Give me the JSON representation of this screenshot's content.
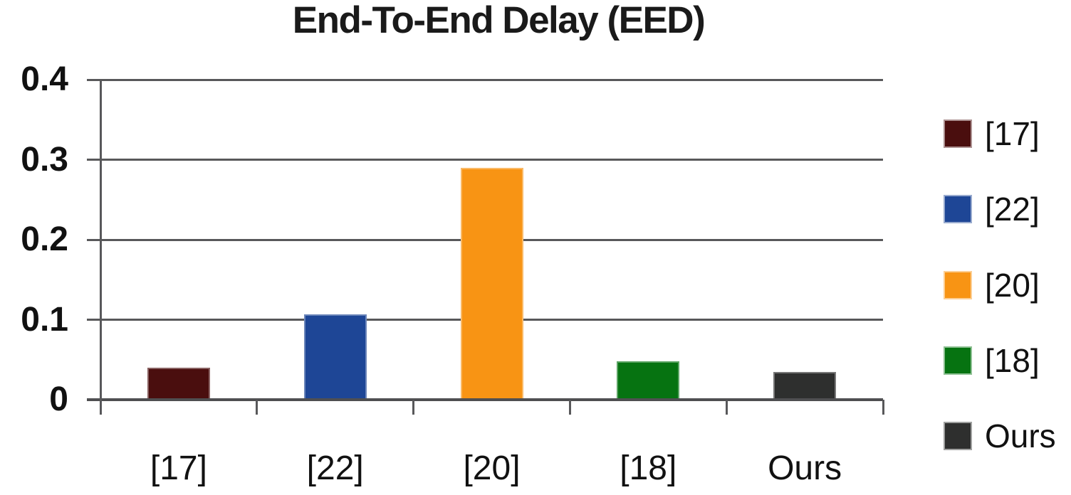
{
  "chart_data": {
    "type": "bar",
    "title": "End-To-End Delay (EED)",
    "categories": [
      "[17]",
      "[22]",
      "[20]",
      "[18]",
      "Ours"
    ],
    "values": [
      0.04,
      0.107,
      0.29,
      0.048,
      0.035
    ],
    "series_colors": [
      "#4A0E0E",
      "#1E4696",
      "#F89414",
      "#067311",
      "#2E2F2E"
    ],
    "xlabel": "",
    "ylabel": "",
    "ylim": [
      0,
      0.4
    ],
    "yticks": [
      0,
      0.1,
      0.2,
      0.3,
      0.4
    ],
    "ytick_labels": [
      "0",
      "0.1",
      "0.2",
      "0.3",
      "0.4"
    ],
    "grid": true,
    "legend": {
      "position": "right",
      "entries": [
        {
          "label": "[17]",
          "color": "#4A0E0E"
        },
        {
          "label": "[22]",
          "color": "#1E4696"
        },
        {
          "label": "[20]",
          "color": "#F89414"
        },
        {
          "label": "[18]",
          "color": "#067311"
        },
        {
          "label": "Ours",
          "color": "#2E2F2E"
        }
      ]
    }
  },
  "colors": {
    "background": "#FFFFFF",
    "gridline": "#58585A",
    "axis": "#58585A",
    "text": "#111111"
  }
}
